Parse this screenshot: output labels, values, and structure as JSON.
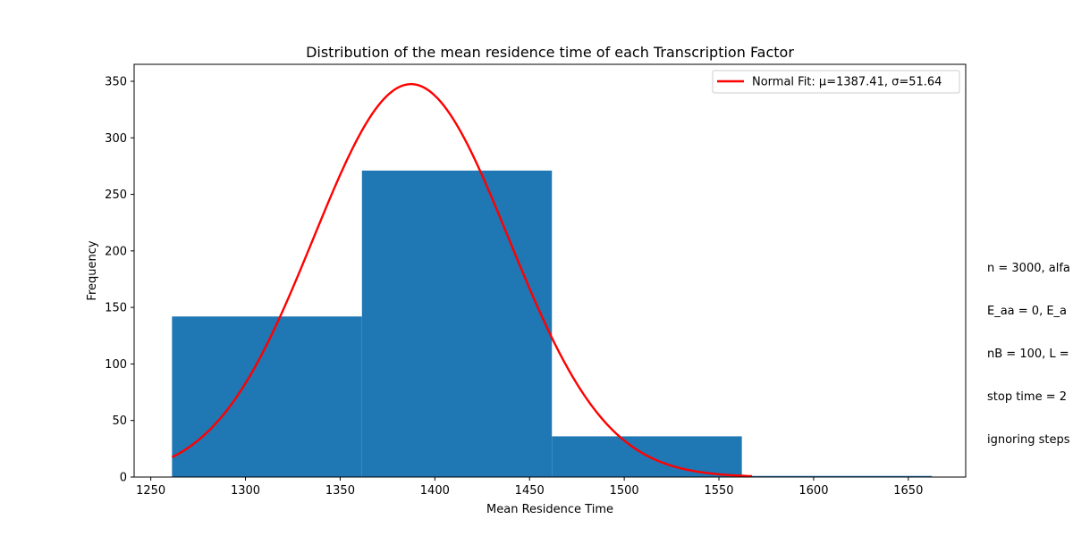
{
  "chart_data": {
    "type": "bar",
    "title": "Distribution of the mean residence time of each Transcription Factor",
    "xlabel": "Mean Residence Time",
    "ylabel": "Frequency",
    "xlim": [
      1241.2,
      1680.3
    ],
    "ylim": [
      0,
      365
    ],
    "x_ticks": [
      1250,
      1300,
      1350,
      1400,
      1450,
      1500,
      1550,
      1600,
      1650
    ],
    "y_ticks": [
      0,
      50,
      100,
      150,
      200,
      250,
      300,
      350
    ],
    "bins": [
      {
        "start": 1261.2,
        "end": 1361.5,
        "value": 142
      },
      {
        "start": 1361.5,
        "end": 1461.8,
        "value": 271
      },
      {
        "start": 1461.8,
        "end": 1562.1,
        "value": 36
      },
      {
        "start": 1562.1,
        "end": 1662.4,
        "value": 1
      }
    ],
    "bar_color": "#1f77b4",
    "series": [
      {
        "name": "Normal Fit: μ=1387.41, σ=51.64",
        "type": "line",
        "color": "#ff0000",
        "mu": 1387.41,
        "sigma": 51.64,
        "peak": 347.5,
        "x_range": [
          1261.2,
          1567.5
        ]
      }
    ],
    "legend_placement": "top-right",
    "grid": false,
    "annotation_lines": [
      "n = 3000, alfa",
      "E_aa = 0, E_a",
      "nB = 100, L =",
      "stop time = 2",
      "ignoring steps"
    ]
  }
}
